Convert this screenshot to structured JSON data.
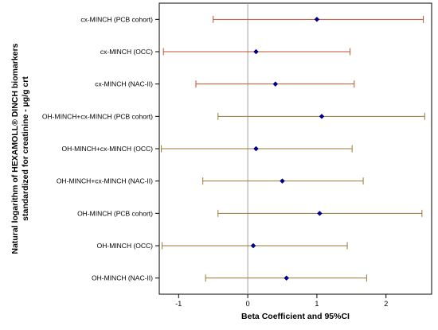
{
  "chart_data": {
    "type": "forest",
    "categories": [
      "cx-MINCH (PCB cohort)",
      "cx-MINCH (OCC)",
      "cx-MINCH (NAC-II)",
      "OH-MINCH+cx-MINCH (PCB cohort)",
      "OH-MINCH+cx-MINCH (OCC)",
      "OH-MINCH+cx-MINCH (NAC-II)",
      "OH-MINCH (PCB cohort)",
      "OH-MINCH (OCC)",
      "OH-MINCH (NAC-II)"
    ],
    "estimates": [
      1.0,
      0.12,
      0.4,
      1.07,
      0.12,
      0.5,
      1.04,
      0.08,
      0.56
    ],
    "ci_lower": [
      -0.5,
      -1.22,
      -0.75,
      -0.43,
      -1.25,
      -0.65,
      -0.43,
      -1.24,
      -0.61
    ],
    "ci_upper": [
      2.54,
      1.48,
      1.54,
      2.56,
      1.51,
      1.67,
      2.52,
      1.44,
      1.72
    ],
    "xticks": [
      -1,
      0,
      1,
      2
    ],
    "xlim": [
      -1.28,
      2.66
    ],
    "reference_line": 0,
    "xlabel": "Beta Coefficient and 95%CI",
    "ylabel_lines": [
      "Natural logarithm of HEXAMOLL® DINCH biomarkers",
      "standardized for creatinine - µg/g crt"
    ],
    "colors": {
      "ci_cx": "#c0502d",
      "ci_oh": "#9a7a32",
      "point": "#00008b",
      "reference": "#a0a0a0",
      "frame": "#000000"
    },
    "point_marker": "diamond"
  }
}
